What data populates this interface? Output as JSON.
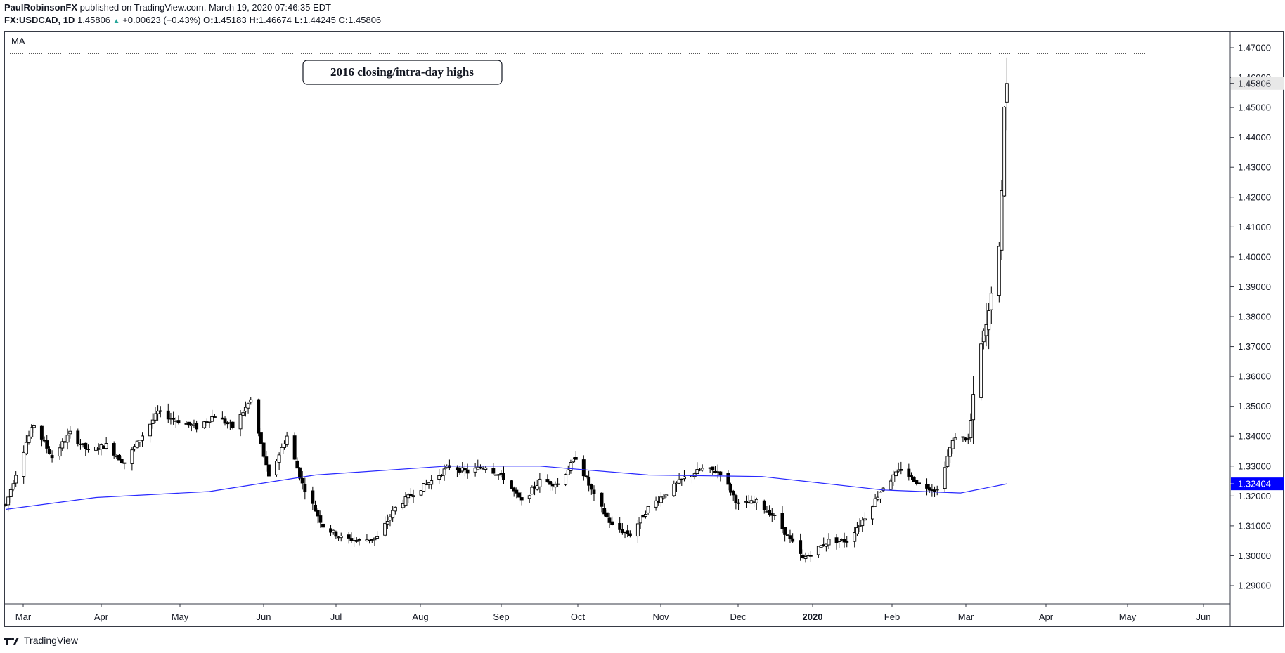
{
  "header": {
    "author": "PaulRobinsonFX",
    "published_text": "published on TradingView.com, March 19, 2020 07:46:35 EDT"
  },
  "symbol_bar": {
    "symbol": "FX:USDCAD, 1D",
    "last": "1.45806",
    "change": "+0.00623 (+0.43%)",
    "open_label": "O:",
    "open": "1.45183",
    "high_label": "H:",
    "high": "1.46674",
    "low_label": "L:",
    "low": "1.44245",
    "close_label": "C:",
    "close": "1.45806"
  },
  "indicator_label": "MA",
  "annotation": "2016 closing/intra-day highs",
  "brand": "TradingView",
  "colors": {
    "ma_line": "#2929ff",
    "ma_tag": "#0000ff",
    "price_tag": "#e8e8e8",
    "candle": "#000000"
  },
  "chart_data": {
    "type": "candlestick",
    "symbol": "FX:USDCAD",
    "timeframe": "1D",
    "ylim": [
      1.285,
      1.4725
    ],
    "y_ticks": [
      "1.29000",
      "1.30000",
      "1.31000",
      "1.32000",
      "1.33000",
      "1.34000",
      "1.35000",
      "1.36000",
      "1.37000",
      "1.38000",
      "1.39000",
      "1.40000",
      "1.41000",
      "1.42000",
      "1.43000",
      "1.44000",
      "1.45000",
      "1.46000",
      "1.47000"
    ],
    "x_ticks": [
      "Mar",
      "Apr",
      "May",
      "Jun",
      "Jul",
      "Aug",
      "Sep",
      "Oct",
      "Nov",
      "Dec",
      "2020",
      "Feb",
      "Mar",
      "Apr",
      "May",
      "Jun"
    ],
    "date_range": [
      "2019-02-25",
      "2020-06-30"
    ],
    "horizontal_lines": [
      1.468,
      1.4572
    ],
    "price_tags": [
      {
        "label": "1.45806",
        "value": 1.45806
      },
      {
        "label": "1.32404",
        "value": 1.32404
      }
    ],
    "closes": [
      {
        "date": "2019-02-25",
        "value": 1.317
      },
      {
        "date": "2019-03-05",
        "value": 1.338
      },
      {
        "date": "2019-03-08",
        "value": 1.344
      },
      {
        "date": "2019-03-15",
        "value": 1.333
      },
      {
        "date": "2019-03-22",
        "value": 1.341
      },
      {
        "date": "2019-03-29",
        "value": 1.335
      },
      {
        "date": "2019-04-05",
        "value": 1.337
      },
      {
        "date": "2019-04-12",
        "value": 1.331
      },
      {
        "date": "2019-04-18",
        "value": 1.339
      },
      {
        "date": "2019-04-25",
        "value": 1.348
      },
      {
        "date": "2019-05-03",
        "value": 1.345
      },
      {
        "date": "2019-05-10",
        "value": 1.343
      },
      {
        "date": "2019-05-17",
        "value": 1.347
      },
      {
        "date": "2019-05-24",
        "value": 1.343
      },
      {
        "date": "2019-05-31",
        "value": 1.352
      },
      {
        "date": "2019-06-07",
        "value": 1.326
      },
      {
        "date": "2019-06-14",
        "value": 1.34
      },
      {
        "date": "2019-06-20",
        "value": 1.324
      },
      {
        "date": "2019-06-28",
        "value": 1.31
      },
      {
        "date": "2019-07-05",
        "value": 1.306
      },
      {
        "date": "2019-07-12",
        "value": 1.305
      },
      {
        "date": "2019-07-19",
        "value": 1.306
      },
      {
        "date": "2019-07-26",
        "value": 1.316
      },
      {
        "date": "2019-08-02",
        "value": 1.321
      },
      {
        "date": "2019-08-09",
        "value": 1.325
      },
      {
        "date": "2019-08-16",
        "value": 1.33
      },
      {
        "date": "2019-08-23",
        "value": 1.328
      },
      {
        "date": "2019-08-30",
        "value": 1.33
      },
      {
        "date": "2019-09-06",
        "value": 1.326
      },
      {
        "date": "2019-09-13",
        "value": 1.318
      },
      {
        "date": "2019-09-20",
        "value": 1.325
      },
      {
        "date": "2019-09-27",
        "value": 1.324
      },
      {
        "date": "2019-10-04",
        "value": 1.333
      },
      {
        "date": "2019-10-11",
        "value": 1.32
      },
      {
        "date": "2019-10-18",
        "value": 1.31
      },
      {
        "date": "2019-10-25",
        "value": 1.307
      },
      {
        "date": "2019-11-01",
        "value": 1.316
      },
      {
        "date": "2019-11-08",
        "value": 1.321
      },
      {
        "date": "2019-11-15",
        "value": 1.326
      },
      {
        "date": "2019-11-22",
        "value": 1.329
      },
      {
        "date": "2019-11-29",
        "value": 1.328
      },
      {
        "date": "2019-12-06",
        "value": 1.317
      },
      {
        "date": "2019-12-13",
        "value": 1.318
      },
      {
        "date": "2019-12-20",
        "value": 1.313
      },
      {
        "date": "2019-12-31",
        "value": 1.299
      },
      {
        "date": "2020-01-10",
        "value": 1.305
      },
      {
        "date": "2020-01-17",
        "value": 1.305
      },
      {
        "date": "2020-01-24",
        "value": 1.313
      },
      {
        "date": "2020-01-31",
        "value": 1.323
      },
      {
        "date": "2020-02-07",
        "value": 1.329
      },
      {
        "date": "2020-02-14",
        "value": 1.324
      },
      {
        "date": "2020-02-21",
        "value": 1.322
      },
      {
        "date": "2020-02-26",
        "value": 1.336
      },
      {
        "date": "2020-02-28",
        "value": 1.34
      },
      {
        "date": "2020-03-04",
        "value": 1.339
      },
      {
        "date": "2020-03-09",
        "value": 1.37
      },
      {
        "date": "2020-03-12",
        "value": 1.38
      },
      {
        "date": "2020-03-13",
        "value": 1.39
      },
      {
        "date": "2020-03-16",
        "value": 1.401
      },
      {
        "date": "2020-03-17",
        "value": 1.42
      },
      {
        "date": "2020-03-18",
        "value": 1.452
      },
      {
        "date": "2020-03-19",
        "value": 1.45806
      }
    ],
    "ma_points": [
      {
        "date": "2019-02-25",
        "value": 1.3155
      },
      {
        "date": "2019-04-01",
        "value": 1.3195
      },
      {
        "date": "2019-05-15",
        "value": 1.3215
      },
      {
        "date": "2019-06-25",
        "value": 1.327
      },
      {
        "date": "2019-08-15",
        "value": 1.33
      },
      {
        "date": "2019-09-20",
        "value": 1.33
      },
      {
        "date": "2019-11-01",
        "value": 1.327
      },
      {
        "date": "2019-12-15",
        "value": 1.3265
      },
      {
        "date": "2020-01-31",
        "value": 1.322
      },
      {
        "date": "2020-03-01",
        "value": 1.321
      },
      {
        "date": "2020-03-19",
        "value": 1.32404
      }
    ]
  }
}
